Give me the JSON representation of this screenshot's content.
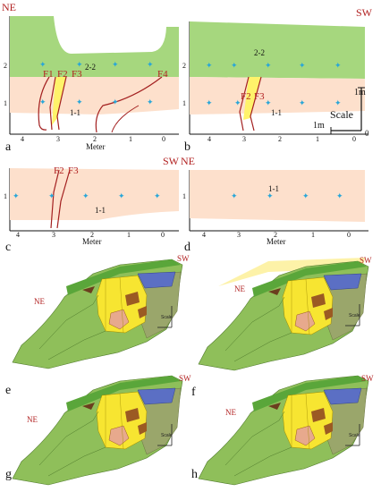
{
  "panel_a": {
    "letter": "a",
    "direction": "NE",
    "faults": [
      "F1",
      "F2",
      "F3",
      "F4"
    ],
    "layers": [
      "2-2",
      "1-1"
    ],
    "row_labels": [
      "2",
      "1"
    ],
    "ticks": [
      "4",
      "3",
      "2",
      "1",
      "0"
    ],
    "axis_label": "Meter"
  },
  "panel_b": {
    "letter": "b",
    "direction": "SW",
    "faults": [
      "F2",
      "F3"
    ],
    "layers": [
      "2-2",
      "1-1"
    ],
    "row_labels": [
      "2",
      "1"
    ],
    "ticks": [
      "4",
      "3",
      "2",
      "1",
      "0"
    ],
    "scale_word": "Scale",
    "scale_v": "1m",
    "scale_h": "1m",
    "scale_zero": "0"
  },
  "panel_c": {
    "letter": "c",
    "direction": "SW",
    "faults": [
      "F2",
      "F3"
    ],
    "layers": [
      "1-1"
    ],
    "row_labels": [
      "1"
    ],
    "ticks": [
      "4",
      "3",
      "2",
      "1",
      "0"
    ],
    "axis_label": "Meter"
  },
  "panel_d": {
    "letter": "d",
    "direction": "NE",
    "layers": [
      "1-1"
    ],
    "row_labels": [
      "1"
    ],
    "ticks": [
      "4",
      "3",
      "2",
      "1",
      "0"
    ],
    "axis_label": "Meter"
  },
  "panels_3d": [
    {
      "letter": "e",
      "ne": "NE",
      "sw": "SW",
      "scale": "Scale"
    },
    {
      "letter": "f",
      "ne": "NE",
      "sw": "SW",
      "scale": "Scale"
    },
    {
      "letter": "g",
      "ne": "NE",
      "sw": "SW",
      "scale": "Scale"
    },
    {
      "letter": "h",
      "ne": "NE",
      "sw": "SW",
      "scale": "Scale"
    }
  ],
  "colors": {
    "green_layer": "#a6d77e",
    "pink_layer": "#fde0cc",
    "fault_line": "#a32020",
    "fault_fill": "#fff36a",
    "survey_point": "#28a6d8",
    "model_yellow": "#f7e531",
    "model_blue": "#5b6fc4",
    "model_brown": "#9b5a23",
    "model_green": "#8fbf5a",
    "model_olive": "#9aa66b",
    "label_red": "#b22222"
  }
}
